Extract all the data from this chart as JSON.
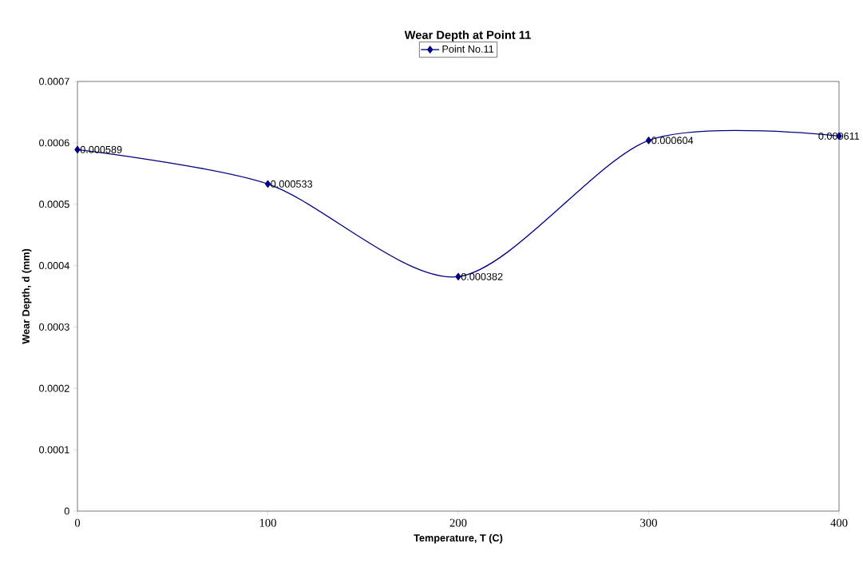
{
  "chart_data": {
    "type": "line",
    "title": "Wear Depth at Point 11",
    "xlabel": "Temperature, T (C)",
    "ylabel": "Wear Depth, d (mm)",
    "x": [
      0,
      100,
      200,
      300,
      400
    ],
    "series": [
      {
        "name": "Point No.11",
        "color": "#000080",
        "values": [
          0.000589,
          0.000533,
          0.000382,
          0.000604,
          0.000611
        ]
      }
    ],
    "xlim": [
      0,
      400
    ],
    "ylim": [
      0,
      0.0007
    ],
    "xticks": [
      0,
      100,
      200,
      300,
      400
    ],
    "yticks": [
      0,
      0.0001,
      0.0002,
      0.0003,
      0.0004,
      0.0005,
      0.0006,
      0.0007
    ],
    "data_labels": true,
    "legend": "top",
    "marker": "diamond",
    "line_style": "solid"
  }
}
